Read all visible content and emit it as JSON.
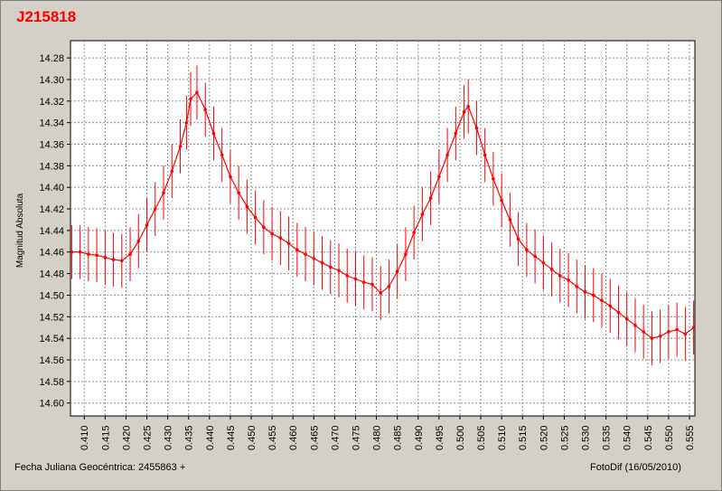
{
  "title": "J215818",
  "footer": {
    "xlabel": "Fecha Juliana Geocéntrica: 2455863 +",
    "credit": "FotoDif (16/05/2010)"
  },
  "chart_data": {
    "type": "scatter",
    "title": "J215818",
    "xlabel": "Fecha Juliana Geocéntrica: 2455863 +",
    "ylabel": "Magnitud Absoluta",
    "xlim": [
      0.4067,
      0.5563
    ],
    "ylim": [
      14.264,
      14.612
    ],
    "y_inverted": true,
    "grid": true,
    "series_color": "#ff0000",
    "xticks": [
      0.41,
      0.415,
      0.42,
      0.425,
      0.43,
      0.435,
      0.44,
      0.445,
      0.45,
      0.455,
      0.46,
      0.465,
      0.47,
      0.475,
      0.48,
      0.485,
      0.49,
      0.495,
      0.5,
      0.505,
      0.51,
      0.515,
      0.52,
      0.525,
      0.53,
      0.535,
      0.54,
      0.545,
      0.55,
      0.555
    ],
    "xtick_labels": [
      "0.410",
      "0.415",
      "0.420",
      "0.425",
      "0.430",
      "0.435",
      "0.440",
      "0.445",
      "0.450",
      "0.455",
      "0.460",
      "0.465",
      "0.470",
      "0.475",
      "0.480",
      "0.485",
      "0.490",
      "0.495",
      "0.500",
      "0.505",
      "0.510",
      "0.515",
      "0.520",
      "0.525",
      "0.530",
      "0.535",
      "0.540",
      "0.545",
      "0.550",
      "0.555"
    ],
    "yticks": [
      14.28,
      14.3,
      14.32,
      14.34,
      14.36,
      14.38,
      14.4,
      14.42,
      14.44,
      14.46,
      14.48,
      14.5,
      14.52,
      14.54,
      14.56,
      14.58,
      14.6
    ],
    "ytick_labels": [
      "14.28",
      "14.30",
      "14.32",
      "14.34",
      "14.36",
      "14.38",
      "14.40",
      "14.42",
      "14.44",
      "14.46",
      "14.48",
      "14.50",
      "14.52",
      "14.54",
      "14.56",
      "14.58",
      "14.60"
    ],
    "x": [
      0.407,
      0.409,
      0.411,
      0.413,
      0.415,
      0.417,
      0.419,
      0.421,
      0.423,
      0.425,
      0.427,
      0.429,
      0.431,
      0.433,
      0.4345,
      0.4355,
      0.437,
      0.439,
      0.441,
      0.443,
      0.445,
      0.447,
      0.449,
      0.451,
      0.453,
      0.455,
      0.457,
      0.459,
      0.461,
      0.463,
      0.465,
      0.467,
      0.469,
      0.471,
      0.473,
      0.475,
      0.477,
      0.479,
      0.481,
      0.483,
      0.485,
      0.487,
      0.489,
      0.491,
      0.493,
      0.495,
      0.497,
      0.499,
      0.501,
      0.502,
      0.504,
      0.506,
      0.508,
      0.51,
      0.512,
      0.514,
      0.516,
      0.518,
      0.52,
      0.522,
      0.524,
      0.526,
      0.528,
      0.53,
      0.532,
      0.534,
      0.536,
      0.538,
      0.54,
      0.542,
      0.544,
      0.546,
      0.548,
      0.55,
      0.552,
      0.554,
      0.556
    ],
    "y": [
      14.46,
      14.46,
      14.462,
      14.463,
      14.465,
      14.467,
      14.468,
      14.462,
      14.45,
      14.435,
      14.42,
      14.405,
      14.385,
      14.362,
      14.34,
      14.318,
      14.312,
      14.328,
      14.35,
      14.37,
      14.39,
      14.405,
      14.418,
      14.428,
      14.437,
      14.443,
      14.447,
      14.452,
      14.458,
      14.462,
      14.466,
      14.47,
      14.474,
      14.477,
      14.482,
      14.485,
      14.488,
      14.49,
      14.498,
      14.492,
      14.478,
      14.462,
      14.442,
      14.425,
      14.41,
      14.39,
      14.37,
      14.35,
      14.33,
      14.325,
      14.345,
      14.37,
      14.392,
      14.412,
      14.43,
      14.448,
      14.458,
      14.464,
      14.47,
      14.476,
      14.482,
      14.486,
      14.492,
      14.497,
      14.5,
      14.505,
      14.51,
      14.516,
      14.522,
      14.528,
      14.534,
      14.54,
      14.538,
      14.534,
      14.532,
      14.536,
      14.53
    ],
    "errors": [
      0.025,
      0.025,
      0.025,
      0.025,
      0.025,
      0.025,
      0.025,
      0.025,
      0.025,
      0.025,
      0.025,
      0.025,
      0.025,
      0.025,
      0.025,
      0.025,
      0.025,
      0.025,
      0.025,
      0.025,
      0.025,
      0.025,
      0.025,
      0.025,
      0.025,
      0.025,
      0.025,
      0.025,
      0.025,
      0.025,
      0.025,
      0.025,
      0.025,
      0.025,
      0.025,
      0.025,
      0.025,
      0.025,
      0.025,
      0.025,
      0.025,
      0.025,
      0.025,
      0.025,
      0.025,
      0.025,
      0.025,
      0.025,
      0.025,
      0.025,
      0.025,
      0.025,
      0.025,
      0.025,
      0.025,
      0.025,
      0.025,
      0.025,
      0.025,
      0.025,
      0.025,
      0.025,
      0.025,
      0.025,
      0.025,
      0.025,
      0.025,
      0.025,
      0.025,
      0.025,
      0.025,
      0.025,
      0.025,
      0.025,
      0.025,
      0.025,
      0.025
    ]
  }
}
